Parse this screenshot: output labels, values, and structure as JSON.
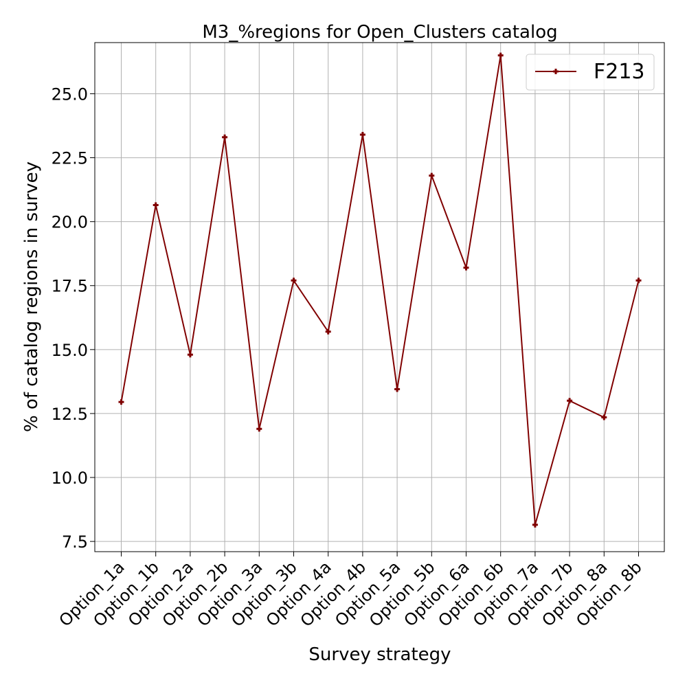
{
  "chart_data": {
    "type": "line",
    "title": "M3_%regions for Open_Clusters catalog",
    "xlabel": "Survey strategy",
    "ylabel": "% of catalog regions in survey",
    "categories": [
      "Option_1a",
      "Option_1b",
      "Option_2a",
      "Option_2b",
      "Option_3a",
      "Option_3b",
      "Option_4a",
      "Option_4b",
      "Option_5a",
      "Option_5b",
      "Option_6a",
      "Option_6b",
      "Option_7a",
      "Option_7b",
      "Option_8a",
      "Option_8b"
    ],
    "series": [
      {
        "name": "F213",
        "color": "#800000",
        "marker": "plus",
        "values": [
          12.95,
          20.65,
          14.8,
          23.3,
          11.9,
          17.7,
          15.7,
          23.4,
          13.45,
          21.8,
          18.2,
          26.5,
          8.15,
          13.0,
          12.35,
          17.7
        ]
      }
    ],
    "yticks": [
      "7.5",
      "10.0",
      "12.5",
      "15.0",
      "17.5",
      "20.0",
      "22.5",
      "25.0"
    ],
    "ylim": [
      7.1,
      27.0
    ],
    "grid": true,
    "legend_position": "top-right"
  }
}
